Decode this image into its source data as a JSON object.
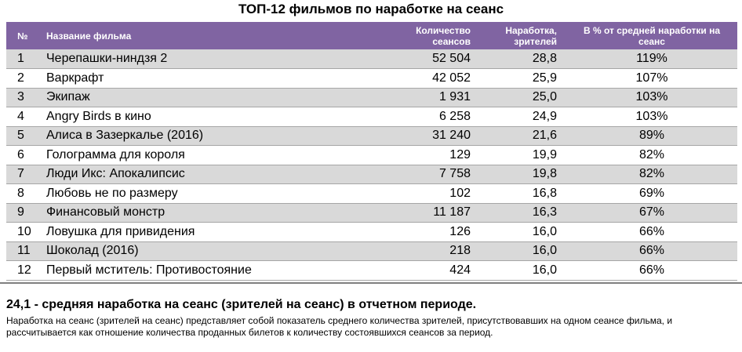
{
  "title": "ТОП-12 фильмов по наработке на сеанс",
  "table": {
    "headers": {
      "num": "№",
      "name": "Название фильма",
      "sessions": "Количество сеансов",
      "narabotka": "Наработка, зрителей",
      "percent": "В % от средней наработки на сеанс"
    },
    "rows": [
      {
        "num": "1",
        "name": "Черепашки-ниндзя 2",
        "sessions": "52 504",
        "narabotka": "28,8",
        "percent": "119%"
      },
      {
        "num": "2",
        "name": "Варкрафт",
        "sessions": "42 052",
        "narabotka": "25,9",
        "percent": "107%"
      },
      {
        "num": "3",
        "name": "Экипаж",
        "sessions": "1 931",
        "narabotka": "25,0",
        "percent": "103%"
      },
      {
        "num": "4",
        "name": "Angry Birds в кино",
        "sessions": "6 258",
        "narabotka": "24,9",
        "percent": "103%"
      },
      {
        "num": "5",
        "name": "Алиса в Зазеркалье (2016)",
        "sessions": "31 240",
        "narabotka": "21,6",
        "percent": "89%"
      },
      {
        "num": "6",
        "name": "Голограмма для короля",
        "sessions": "129",
        "narabotka": "19,9",
        "percent": "82%"
      },
      {
        "num": "7",
        "name": "Люди Икс: Апокалипсис",
        "sessions": "7 758",
        "narabotka": "19,8",
        "percent": "82%"
      },
      {
        "num": "8",
        "name": "Любовь не по размеру",
        "sessions": "102",
        "narabotka": "16,8",
        "percent": "69%"
      },
      {
        "num": "9",
        "name": "Финансовый монстр",
        "sessions": "11 187",
        "narabotka": "16,3",
        "percent": "67%"
      },
      {
        "num": "10",
        "name": "Ловушка для привидения",
        "sessions": "126",
        "narabotka": "16,0",
        "percent": "66%"
      },
      {
        "num": "11",
        "name": "Шоколад (2016)",
        "sessions": "218",
        "narabotka": "16,0",
        "percent": "66%"
      },
      {
        "num": "12",
        "name": "Первый мститель: Противостояние",
        "sessions": "424",
        "narabotka": "16,0",
        "percent": "66%"
      }
    ]
  },
  "summary": "24,1 - средняя наработка на сеанс (зрителей на сеанс) в отчетном периоде.",
  "note": "Наработка на сеанс (зрителей на сеанс) представляет собой показатель среднего количества зрителей, присутствовавших на одном сеансе фильма, и рассчитывается как отношение количества проданных билетов к количеству состоявшихся сеансов за период.",
  "colors": {
    "header_bg": "#8064a2",
    "stripe": "#d9d9d9"
  }
}
